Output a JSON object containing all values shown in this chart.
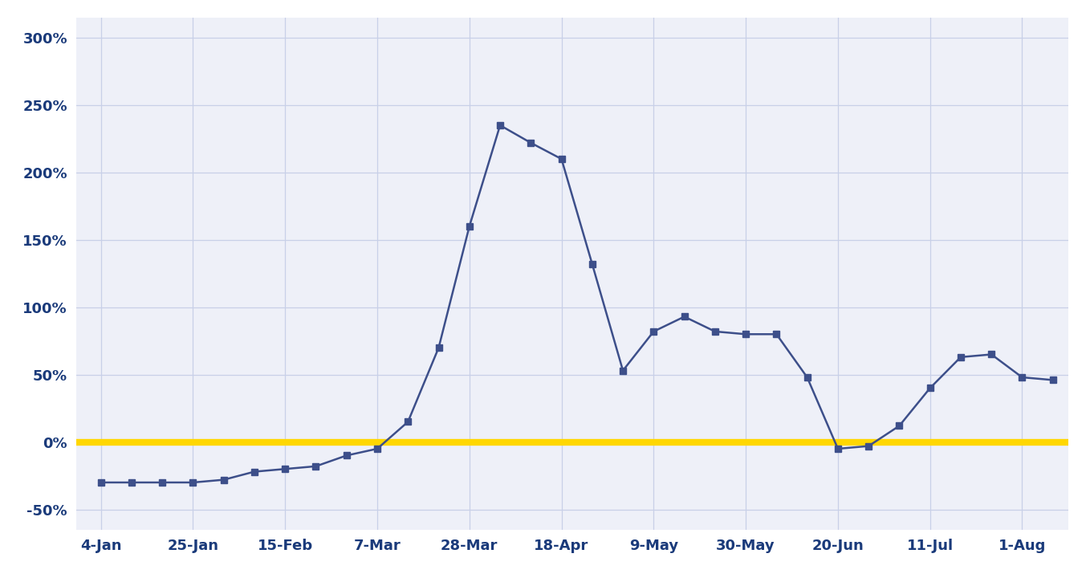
{
  "x_labels": [
    "4-Jan",
    "25-Jan",
    "15-Feb",
    "7-Mar",
    "28-Mar",
    "18-Apr",
    "9-May",
    "30-May",
    "20-Jun",
    "11-Jul",
    "1-Aug"
  ],
  "x_tick_positions": [
    0,
    3,
    6,
    9,
    12,
    15,
    18,
    21,
    24,
    27,
    30
  ],
  "y_values": [
    -30,
    -30,
    -30,
    -30,
    -28,
    -22,
    -20,
    -18,
    -10,
    -5,
    15,
    70,
    160,
    235,
    222,
    210,
    132,
    53,
    82,
    93,
    82,
    80,
    80,
    48,
    -5,
    -3,
    12,
    40,
    63,
    65,
    48,
    46
  ],
  "line_color": "#3d4f8a",
  "marker_color": "#3d4f8a",
  "zero_line_color": "#FFD700",
  "plot_bg_color": "#eef0f8",
  "fig_bg_color": "#ffffff",
  "grid_color": "#c8d0e8",
  "tick_label_color": "#1a3a7a",
  "yticks": [
    -50,
    0,
    50,
    100,
    150,
    200,
    250,
    300
  ],
  "ytick_labels": [
    "-50%",
    "0%",
    "50%",
    "100%",
    "150%",
    "200%",
    "250%",
    "300%"
  ],
  "ylim_min": -65,
  "ylim_max": 315,
  "xlim_min": -0.8,
  "xlim_max": 31.5
}
